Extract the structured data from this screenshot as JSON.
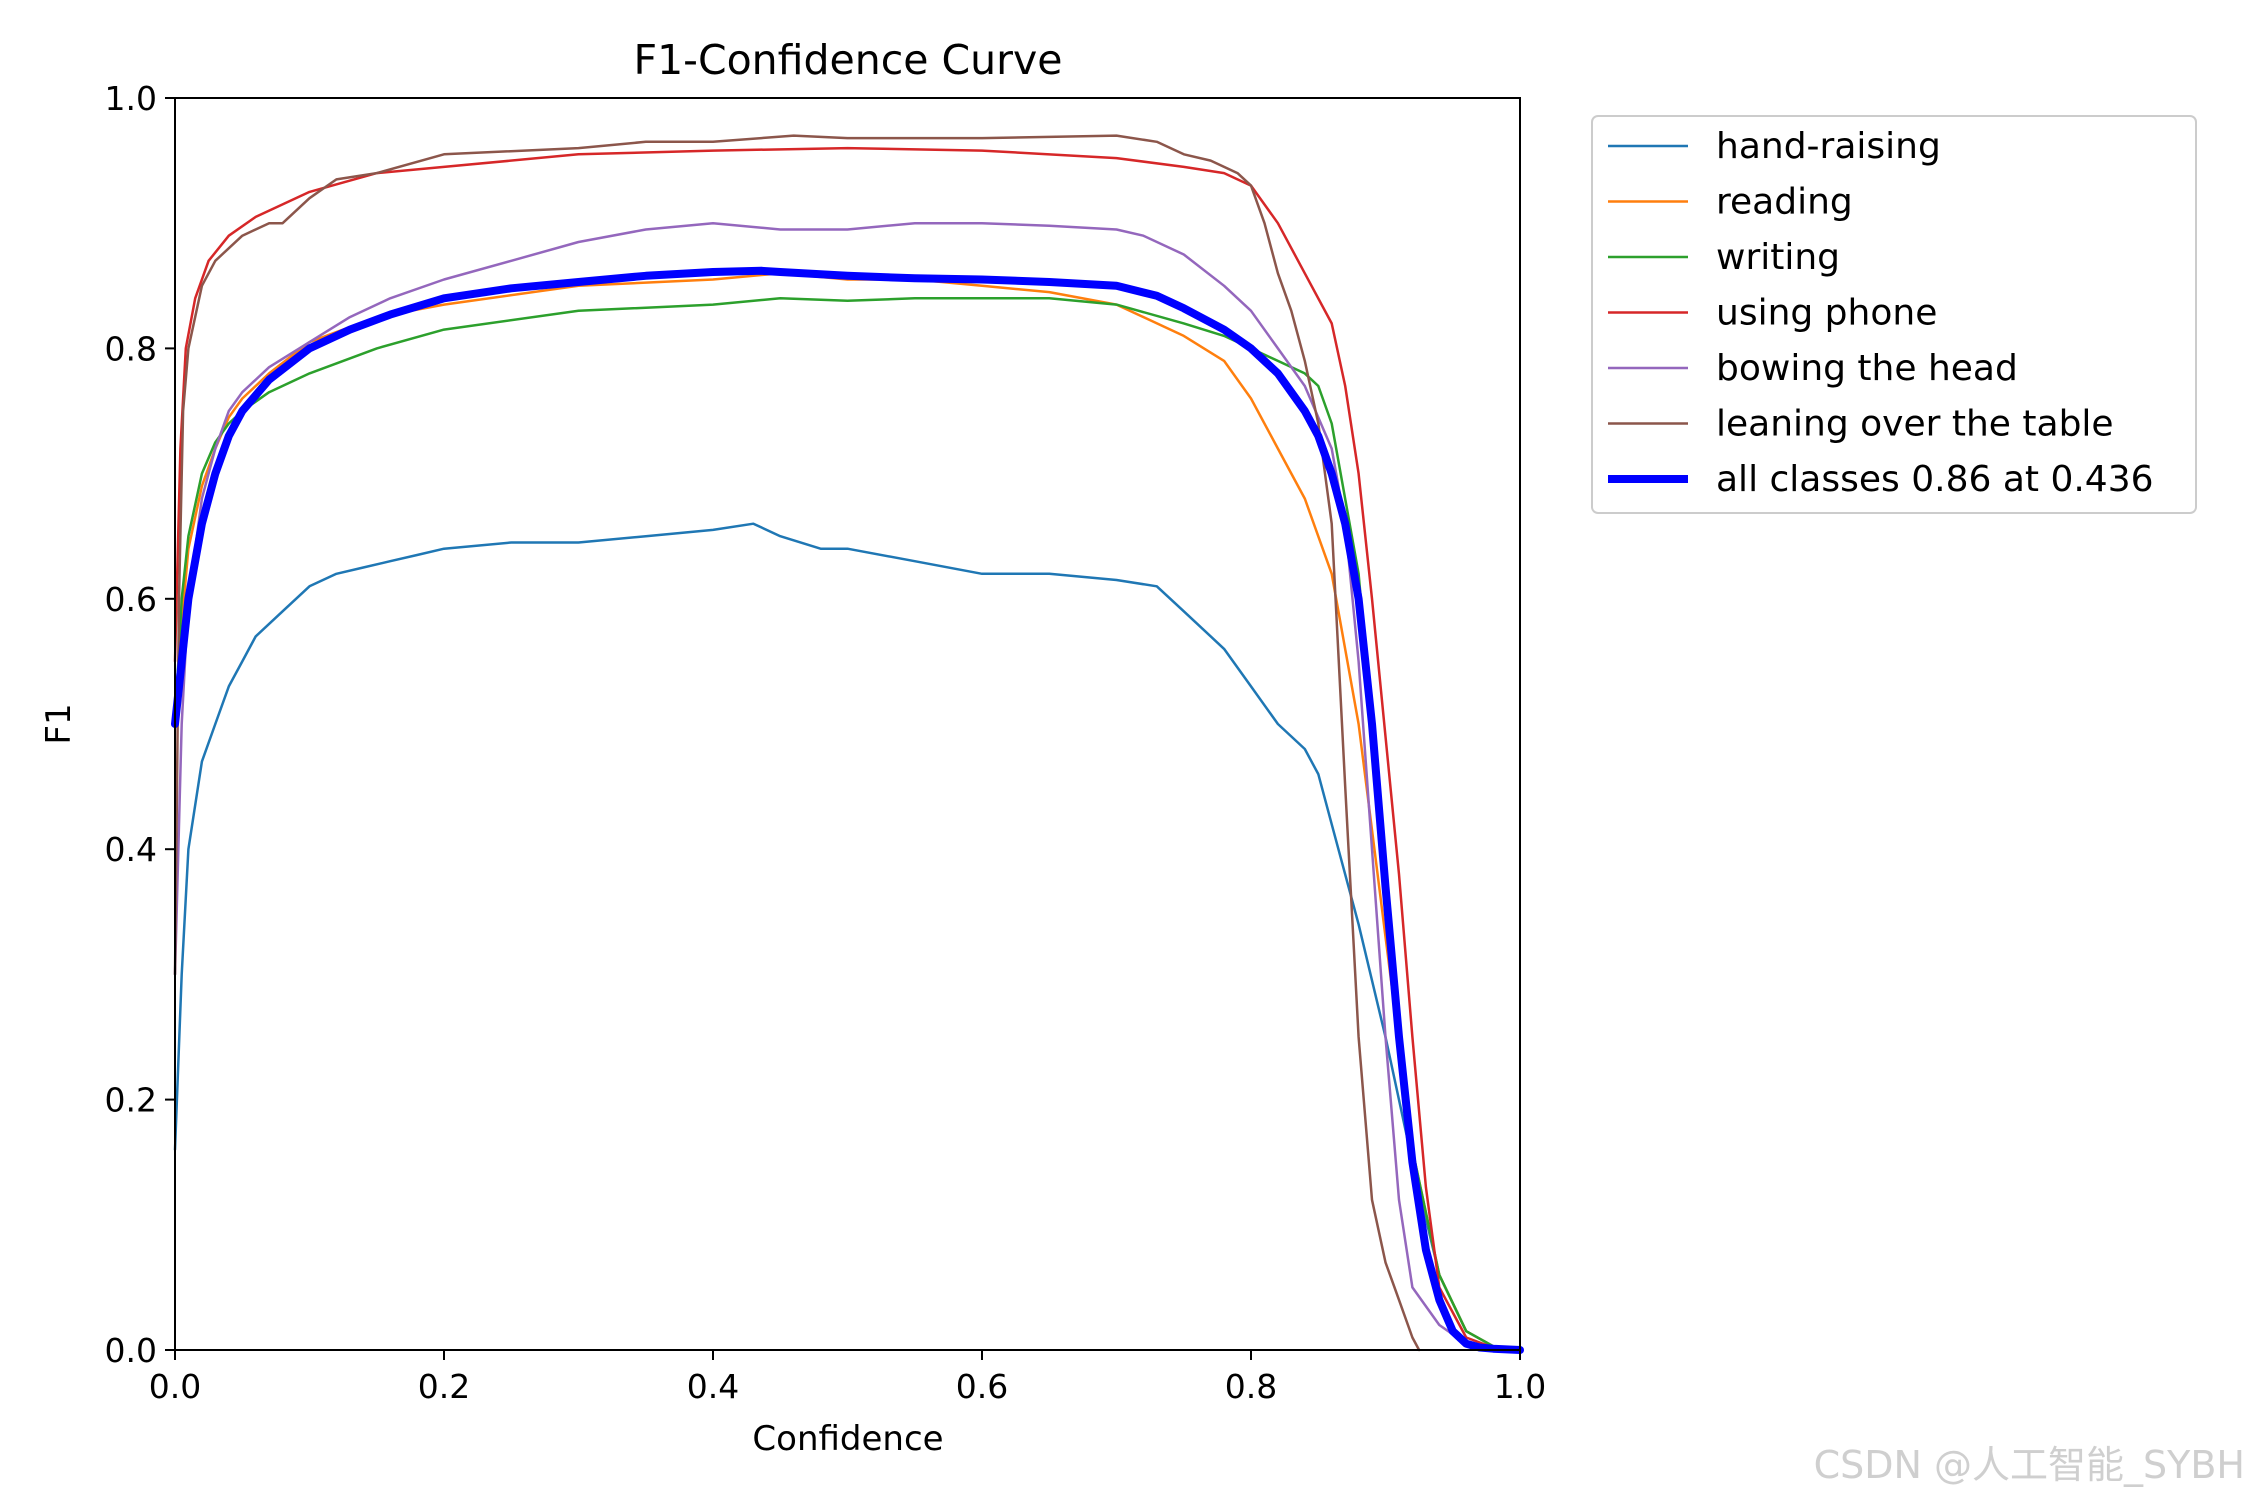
{
  "chart_data": {
    "type": "line",
    "title": "F1-Confidence Curve",
    "xlabel": "Confidence",
    "ylabel": "F1",
    "xlim": [
      0,
      1
    ],
    "ylim": [
      0,
      1
    ],
    "xticks": [
      "0.0",
      "0.2",
      "0.4",
      "0.6",
      "0.8",
      "1.0"
    ],
    "yticks": [
      "0.0",
      "0.2",
      "0.4",
      "0.6",
      "0.8",
      "1.0"
    ],
    "grid": false,
    "legend_position": "outside-top-right",
    "series": [
      {
        "name": "hand-raising",
        "color": "#1f77b4",
        "x": [
          0.0,
          0.005,
          0.01,
          0.02,
          0.03,
          0.04,
          0.05,
          0.06,
          0.08,
          0.1,
          0.12,
          0.14,
          0.16,
          0.18,
          0.2,
          0.25,
          0.3,
          0.35,
          0.4,
          0.43,
          0.45,
          0.48,
          0.5,
          0.55,
          0.6,
          0.65,
          0.7,
          0.73,
          0.75,
          0.78,
          0.8,
          0.82,
          0.84,
          0.85,
          0.86,
          0.88,
          0.9,
          0.92,
          0.94,
          0.96,
          0.98,
          1.0
        ],
        "y": [
          0.16,
          0.3,
          0.4,
          0.47,
          0.5,
          0.53,
          0.55,
          0.57,
          0.59,
          0.61,
          0.62,
          0.625,
          0.63,
          0.635,
          0.64,
          0.645,
          0.645,
          0.65,
          0.655,
          0.66,
          0.65,
          0.64,
          0.64,
          0.63,
          0.62,
          0.62,
          0.615,
          0.61,
          0.59,
          0.56,
          0.53,
          0.5,
          0.48,
          0.46,
          0.42,
          0.34,
          0.25,
          0.15,
          0.06,
          0.015,
          0.003,
          0.0
        ]
      },
      {
        "name": "reading",
        "color": "#ff7f0e",
        "x": [
          0.0,
          0.005,
          0.01,
          0.02,
          0.03,
          0.04,
          0.05,
          0.07,
          0.1,
          0.15,
          0.2,
          0.3,
          0.4,
          0.45,
          0.5,
          0.55,
          0.6,
          0.65,
          0.7,
          0.75,
          0.78,
          0.8,
          0.82,
          0.84,
          0.86,
          0.88,
          0.9,
          0.92,
          0.94,
          0.96,
          0.98,
          1.0
        ],
        "y": [
          0.5,
          0.58,
          0.64,
          0.69,
          0.72,
          0.745,
          0.76,
          0.78,
          0.805,
          0.825,
          0.835,
          0.85,
          0.855,
          0.86,
          0.855,
          0.855,
          0.85,
          0.845,
          0.835,
          0.81,
          0.79,
          0.76,
          0.72,
          0.68,
          0.62,
          0.5,
          0.33,
          0.16,
          0.06,
          0.015,
          0.003,
          0.0
        ]
      },
      {
        "name": "writing",
        "color": "#2ca02c",
        "x": [
          0.0,
          0.005,
          0.01,
          0.02,
          0.03,
          0.04,
          0.05,
          0.07,
          0.1,
          0.15,
          0.2,
          0.3,
          0.4,
          0.45,
          0.5,
          0.55,
          0.6,
          0.65,
          0.7,
          0.75,
          0.78,
          0.8,
          0.82,
          0.84,
          0.85,
          0.86,
          0.88,
          0.9,
          0.92,
          0.94,
          0.96,
          0.98,
          1.0
        ],
        "y": [
          0.5,
          0.6,
          0.65,
          0.7,
          0.725,
          0.74,
          0.75,
          0.765,
          0.78,
          0.8,
          0.815,
          0.83,
          0.835,
          0.84,
          0.838,
          0.84,
          0.84,
          0.84,
          0.835,
          0.82,
          0.81,
          0.8,
          0.79,
          0.78,
          0.77,
          0.74,
          0.62,
          0.38,
          0.16,
          0.06,
          0.015,
          0.003,
          0.0
        ]
      },
      {
        "name": "using phone",
        "color": "#d62728",
        "x": [
          0.0,
          0.004,
          0.008,
          0.015,
          0.025,
          0.04,
          0.06,
          0.08,
          0.1,
          0.15,
          0.2,
          0.3,
          0.4,
          0.5,
          0.6,
          0.7,
          0.75,
          0.78,
          0.8,
          0.82,
          0.84,
          0.86,
          0.87,
          0.88,
          0.89,
          0.9,
          0.91,
          0.92,
          0.93,
          0.94,
          0.96,
          0.98,
          1.0
        ],
        "y": [
          0.55,
          0.72,
          0.8,
          0.84,
          0.87,
          0.89,
          0.905,
          0.915,
          0.925,
          0.94,
          0.945,
          0.955,
          0.958,
          0.96,
          0.958,
          0.952,
          0.945,
          0.94,
          0.93,
          0.9,
          0.86,
          0.82,
          0.77,
          0.7,
          0.6,
          0.49,
          0.38,
          0.25,
          0.13,
          0.05,
          0.01,
          0.002,
          0.0
        ]
      },
      {
        "name": "bowing the head",
        "color": "#9467bd",
        "x": [
          0.0,
          0.005,
          0.01,
          0.02,
          0.03,
          0.04,
          0.05,
          0.07,
          0.1,
          0.13,
          0.16,
          0.2,
          0.25,
          0.3,
          0.35,
          0.4,
          0.45,
          0.5,
          0.55,
          0.6,
          0.65,
          0.7,
          0.72,
          0.75,
          0.78,
          0.8,
          0.82,
          0.84,
          0.86,
          0.87,
          0.88,
          0.89,
          0.9,
          0.91,
          0.92,
          0.94,
          0.96,
          0.98,
          1.0
        ],
        "y": [
          0.3,
          0.5,
          0.6,
          0.68,
          0.72,
          0.75,
          0.765,
          0.785,
          0.805,
          0.825,
          0.84,
          0.855,
          0.87,
          0.885,
          0.895,
          0.9,
          0.895,
          0.895,
          0.9,
          0.9,
          0.898,
          0.895,
          0.89,
          0.875,
          0.85,
          0.83,
          0.8,
          0.77,
          0.72,
          0.66,
          0.55,
          0.4,
          0.25,
          0.12,
          0.05,
          0.02,
          0.005,
          0.001,
          0.0
        ]
      },
      {
        "name": "leaning over the table",
        "color": "#8c564b",
        "x": [
          0.0,
          0.003,
          0.006,
          0.01,
          0.02,
          0.03,
          0.05,
          0.07,
          0.08,
          0.1,
          0.12,
          0.15,
          0.2,
          0.3,
          0.35,
          0.4,
          0.46,
          0.5,
          0.6,
          0.7,
          0.73,
          0.75,
          0.77,
          0.79,
          0.8,
          0.81,
          0.82,
          0.83,
          0.84,
          0.85,
          0.86,
          0.87,
          0.88,
          0.89,
          0.9,
          0.91,
          0.92,
          0.925
        ],
        "y": [
          0.3,
          0.6,
          0.75,
          0.8,
          0.85,
          0.87,
          0.89,
          0.9,
          0.9,
          0.92,
          0.935,
          0.94,
          0.955,
          0.96,
          0.965,
          0.965,
          0.97,
          0.968,
          0.968,
          0.97,
          0.965,
          0.955,
          0.95,
          0.94,
          0.93,
          0.9,
          0.86,
          0.83,
          0.79,
          0.74,
          0.66,
          0.45,
          0.25,
          0.12,
          0.07,
          0.04,
          0.01,
          0.0
        ]
      },
      {
        "name": "all classes 0.86 at 0.436",
        "color": "#0000ff",
        "thick": true,
        "x": [
          0.0,
          0.005,
          0.01,
          0.02,
          0.03,
          0.04,
          0.05,
          0.07,
          0.1,
          0.13,
          0.16,
          0.2,
          0.25,
          0.3,
          0.35,
          0.4,
          0.436,
          0.45,
          0.5,
          0.55,
          0.6,
          0.65,
          0.7,
          0.73,
          0.75,
          0.78,
          0.8,
          0.82,
          0.84,
          0.85,
          0.86,
          0.87,
          0.88,
          0.89,
          0.9,
          0.91,
          0.92,
          0.93,
          0.94,
          0.95,
          0.96,
          0.97,
          0.98,
          1.0
        ],
        "y": [
          0.5,
          0.55,
          0.6,
          0.66,
          0.7,
          0.73,
          0.75,
          0.775,
          0.8,
          0.815,
          0.827,
          0.84,
          0.848,
          0.853,
          0.858,
          0.861,
          0.862,
          0.861,
          0.858,
          0.856,
          0.855,
          0.853,
          0.85,
          0.842,
          0.832,
          0.815,
          0.8,
          0.78,
          0.75,
          0.73,
          0.7,
          0.66,
          0.6,
          0.5,
          0.37,
          0.25,
          0.15,
          0.08,
          0.04,
          0.015,
          0.005,
          0.002,
          0.001,
          0.0
        ]
      }
    ]
  },
  "watermark": "CSDN @人工智能_SYBH"
}
